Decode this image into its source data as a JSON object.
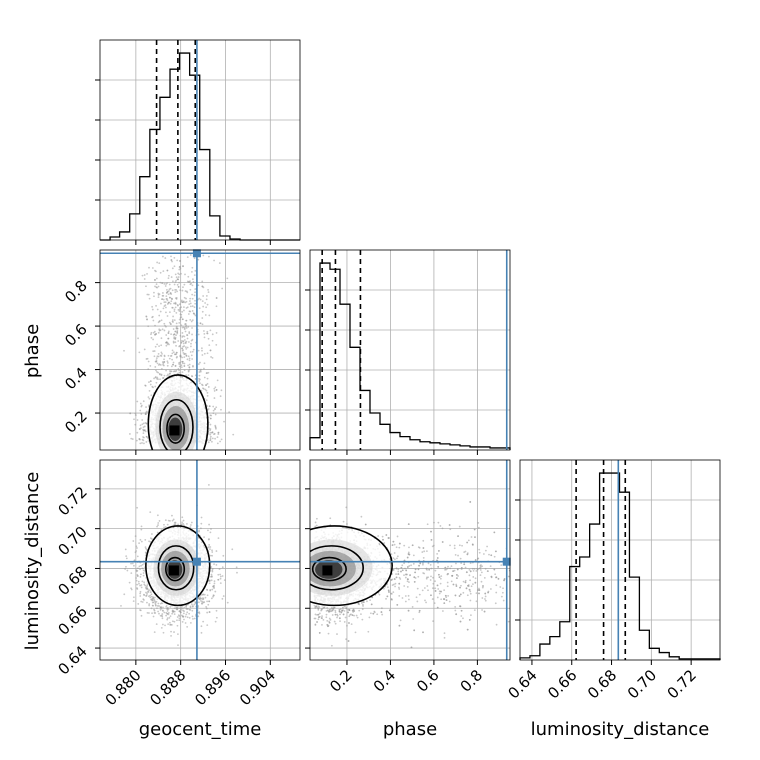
{
  "chart_data": {
    "type": "corner",
    "parameters": [
      "geocent_time",
      "phase",
      "luminosity_distance"
    ],
    "axis_labels": {
      "x": [
        "geocent_time",
        "phase",
        "luminosity_distance"
      ],
      "y": [
        "phase",
        "luminosity_distance"
      ]
    },
    "ranges": {
      "geocent_time": [
        0.8736,
        0.9093
      ],
      "phase": [
        0.03,
        0.95
      ],
      "luminosity_distance": [
        0.634,
        0.7345
      ]
    },
    "ticks": {
      "geocent_time": [
        "0.880",
        "0.888",
        "0.896",
        "0.904"
      ],
      "phase": [
        "0.2",
        "0.4",
        "0.6",
        "0.8"
      ],
      "luminosity_distance": [
        "0.64",
        "0.66",
        "0.68",
        "0.70",
        "0.72"
      ]
    },
    "truths": {
      "geocent_time": 0.8909,
      "phase": 0.935,
      "luminosity_distance": 0.6834
    },
    "quantiles": {
      "geocent_time": [
        0.8837,
        0.8875,
        0.8906
      ],
      "phase": [
        0.086,
        0.147,
        0.262
      ],
      "luminosity_distance": [
        0.6622,
        0.676,
        0.6869
      ]
    },
    "histograms": {
      "geocent_time": {
        "edges": [
          0.8736,
          0.8754,
          0.8771,
          0.8789,
          0.8807,
          0.8825,
          0.8843,
          0.8861,
          0.8878,
          0.8896,
          0.8914,
          0.8932,
          0.895,
          0.8968,
          0.8986,
          0.9004,
          0.9021,
          0.9039,
          0.9057,
          0.9075,
          0.9093
        ],
        "counts": [
          0,
          3,
          8,
          26,
          63,
          110,
          142,
          170,
          186,
          164,
          90,
          24,
          4,
          1,
          0,
          0,
          0,
          0,
          0,
          0
        ]
      },
      "phase": {
        "edges": [
          0.03,
          0.076,
          0.122,
          0.168,
          0.214,
          0.26,
          0.306,
          0.352,
          0.398,
          0.444,
          0.49,
          0.536,
          0.582,
          0.628,
          0.674,
          0.72,
          0.766,
          0.812,
          0.858,
          0.904,
          0.95
        ],
        "counts": [
          12,
          182,
          176,
          142,
          100,
          58,
          36,
          25,
          17,
          13,
          10,
          8,
          7,
          6,
          5,
          4,
          3,
          3,
          2,
          2
        ]
      },
      "luminosity_distance": {
        "edges": [
          0.634,
          0.639,
          0.644,
          0.649,
          0.654,
          0.659,
          0.664,
          0.669,
          0.674,
          0.679,
          0.684,
          0.689,
          0.694,
          0.699,
          0.704,
          0.709,
          0.714,
          0.719,
          0.724,
          0.729,
          0.7345
        ],
        "counts": [
          2,
          4,
          15,
          22,
          36,
          88,
          97,
          128,
          176,
          176,
          158,
          78,
          28,
          11,
          7,
          3,
          1,
          1,
          1,
          1
        ]
      }
    },
    "scatter_2d": {
      "phase_vs_geocent_time": {
        "mean": [
          0.8874,
          0.16
        ],
        "sd": [
          0.0028,
          0.12
        ],
        "peak": [
          0.8869,
          0.12
        ]
      },
      "luminosity_distance_vs_geocent_time": {
        "mean": [
          0.8873,
          0.677
        ],
        "sd": [
          0.003,
          0.0105
        ],
        "peak": [
          0.8868,
          0.679
        ]
      },
      "luminosity_distance_vs_phase": {
        "mean": [
          0.2,
          0.676
        ],
        "sd": [
          0.14,
          0.0105
        ],
        "peak": [
          0.11,
          0.679
        ]
      }
    },
    "colors": {
      "truth": "#4682b4",
      "histogram": "#000000",
      "points": "#9a9a9a",
      "grid": "#b0b0b0"
    }
  }
}
